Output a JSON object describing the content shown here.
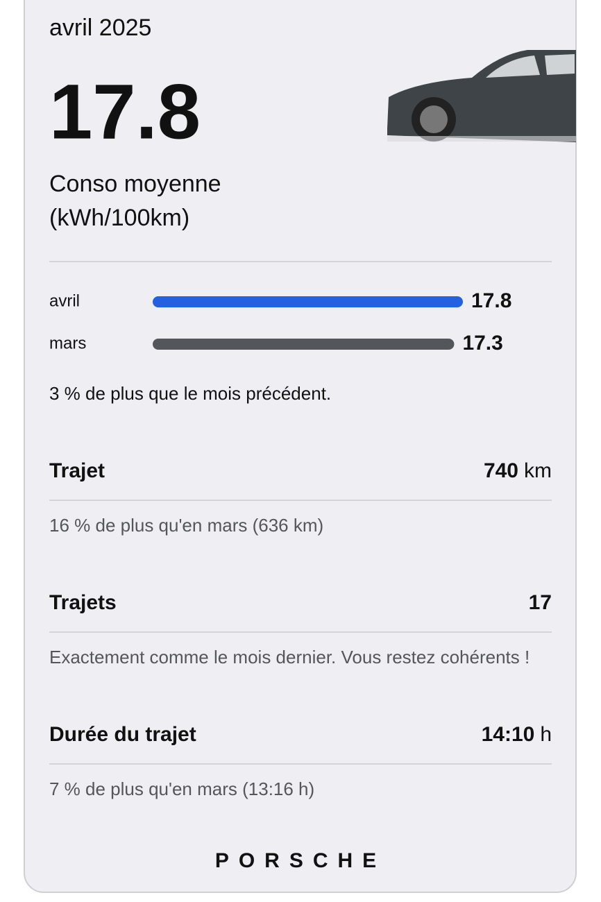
{
  "header": {
    "period": "avril 2025"
  },
  "consumption": {
    "value": "17.8",
    "label_line1": "Conso moyenne",
    "label_line2": "(kWh/100km)"
  },
  "comparison": {
    "bars": [
      {
        "label": "avril",
        "value": 17.8,
        "color": "#2461e0"
      },
      {
        "label": "mars",
        "value": 17.3,
        "color": "#55565b"
      }
    ],
    "note": "3 % de plus que le mois précédent."
  },
  "stats": [
    {
      "label": "Trajet",
      "value": 740,
      "unit": "km",
      "note": "16 % de plus qu'en mars (636 km)"
    },
    {
      "label": "Trajets",
      "value": 17,
      "note": "Exactement comme le mois dernier. Vous restez cohérents !"
    },
    {
      "label": "Durée du trajet",
      "value": "14:10",
      "unit": "h",
      "note": "7 % de plus qu'en mars (13:16 h)"
    }
  ],
  "brand": "PORSCHE"
}
